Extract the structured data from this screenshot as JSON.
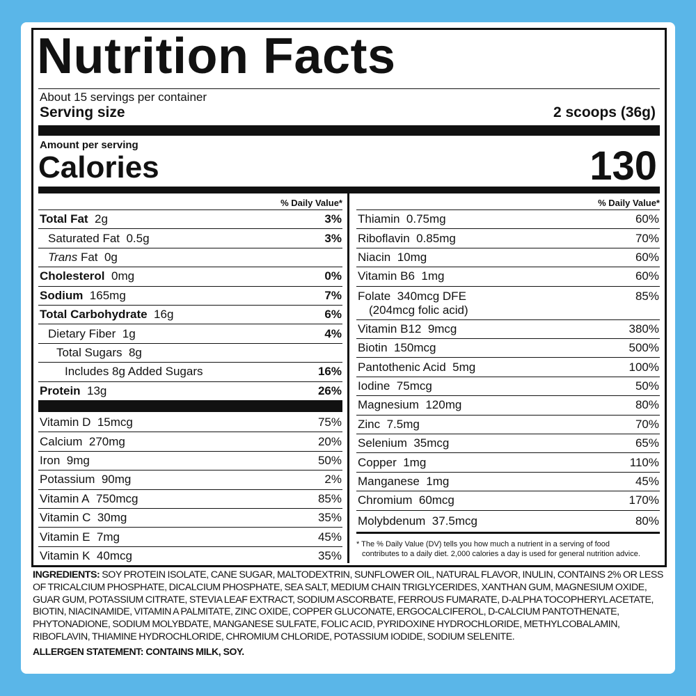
{
  "title": "Nutrition Facts",
  "servings": "About 15 servings per container",
  "serving_size": {
    "label": "Serving size",
    "value": "2 scoops (36g)"
  },
  "amount_per_serving": "Amount per serving",
  "calories": {
    "label": "Calories",
    "value": "130"
  },
  "left": {
    "header": "% Daily Value*",
    "rows": [
      {
        "name": "Total Fat",
        "amount": "2g",
        "dv": "3%"
      },
      {
        "name": "Saturated Fat",
        "amount": "0.5g",
        "dv": "3%"
      },
      {
        "italic": "Trans",
        "name": "Fat",
        "amount": "0g"
      },
      {
        "name": "Cholesterol",
        "amount": "0mg",
        "dv": "0%"
      },
      {
        "name": "Sodium",
        "amount": "165mg",
        "dv": "7%"
      },
      {
        "name": "Total Carbohydrate",
        "amount": "16g",
        "dv": "6%"
      },
      {
        "name": "Dietary Fiber",
        "amount": "1g",
        "dv": "4%"
      },
      {
        "name": "Total Sugars",
        "amount": "8g"
      },
      {
        "name": "Includes 8g Added Sugars",
        "dv": "16%"
      },
      {
        "name": "Protein",
        "amount": "13g",
        "dv": "26%"
      }
    ],
    "vitamins": [
      {
        "name": "Vitamin D",
        "amount": "15mcg",
        "dv": "75%"
      },
      {
        "name": "Calcium",
        "amount": "270mg",
        "dv": "20%"
      },
      {
        "name": "Iron",
        "amount": "9mg",
        "dv": "50%"
      },
      {
        "name": "Potassium",
        "amount": "90mg",
        "dv": "2%"
      },
      {
        "name": "Vitamin A",
        "amount": "750mcg",
        "dv": "85%"
      },
      {
        "name": "Vitamin C",
        "amount": "30mg",
        "dv": "35%"
      },
      {
        "name": "Vitamin E",
        "amount": "7mg",
        "dv": "45%"
      },
      {
        "name": "Vitamin K",
        "amount": "40mcg",
        "dv": "35%"
      }
    ]
  },
  "right": {
    "header": "% Daily Value*",
    "rows": [
      {
        "name": "Thiamin",
        "amount": "0.75mg",
        "dv": "60%"
      },
      {
        "name": "Riboflavin",
        "amount": "0.85mg",
        "dv": "70%"
      },
      {
        "name": "Niacin",
        "amount": "10mg",
        "dv": "60%"
      },
      {
        "name": "Vitamin B6",
        "amount": "1mg",
        "dv": "60%"
      },
      {
        "name": "Folate",
        "amount": "340mcg DFE",
        "note": "(204mcg folic acid)",
        "dv": "85%"
      },
      {
        "name": "Vitamin B12",
        "amount": "9mcg",
        "dv": "380%"
      },
      {
        "name": "Biotin",
        "amount": "150mcg",
        "dv": "500%"
      },
      {
        "name": "Pantothenic Acid",
        "amount": "5mg",
        "dv": "100%"
      },
      {
        "name": "Iodine",
        "amount": "75mcg",
        "dv": "50%"
      },
      {
        "name": "Magnesium",
        "amount": "120mg",
        "dv": "80%"
      },
      {
        "name": "Zinc",
        "amount": "7.5mg",
        "dv": "70%"
      },
      {
        "name": "Selenium",
        "amount": "35mcg",
        "dv": "65%"
      },
      {
        "name": "Copper",
        "amount": "1mg",
        "dv": "110%"
      },
      {
        "name": "Manganese",
        "amount": "1mg",
        "dv": "45%"
      },
      {
        "name": "Chromium",
        "amount": "60mcg",
        "dv": "170%"
      },
      {
        "name": "Molybdenum",
        "amount": "37.5mcg",
        "dv": "80%"
      }
    ],
    "footnote": [
      "* The % Daily Value (DV) tells you how much a nutrient in a serving of food",
      "contributes to a daily diet. 2,000 calories a day is used for general nutrition advice."
    ]
  },
  "ingredients": {
    "label": "INGREDIENTS:",
    "text": "SOY PROTEIN ISOLATE, CANE SUGAR, MALTODEXTRIN, SUNFLOWER OIL, NATURAL FLAVOR, INULIN, CONTAINS 2% OR LESS OF TRICALCIUM PHOSPHATE, DICALCIUM PHOSPHATE, SEA SALT, MEDIUM CHAIN TRIGLYCERIDES, XANTHAN GUM, MAGNESIUM OXIDE, GUAR GUM, POTASSIUM CITRATE, STEVIA LEAF EXTRACT, SODIUM ASCORBATE, FERROUS FUMARATE, D-ALPHA TOCOPHERYL ACETATE, BIOTIN, NIACINAMIDE, VITAMIN A PALMITATE, ZINC OXIDE, COPPER GLUCONATE, ERGOCALCIFEROL, D-CALCIUM PANTOTHENATE, PHYTONADIONE, SODIUM MOLYBDATE, MANGANESE SULFATE, FOLIC ACID, PYRIDOXINE HYDROCHLORIDE, METHYLCOBALAMIN, RIBOFLAVIN, THIAMINE HYDROCHLORIDE, CHROMIUM CHLORIDE, POTASSIUM IODIDE, SODIUM SELENITE."
  },
  "allergen": "ALLERGEN STATEMENT: CONTAINS MILK, SOY."
}
